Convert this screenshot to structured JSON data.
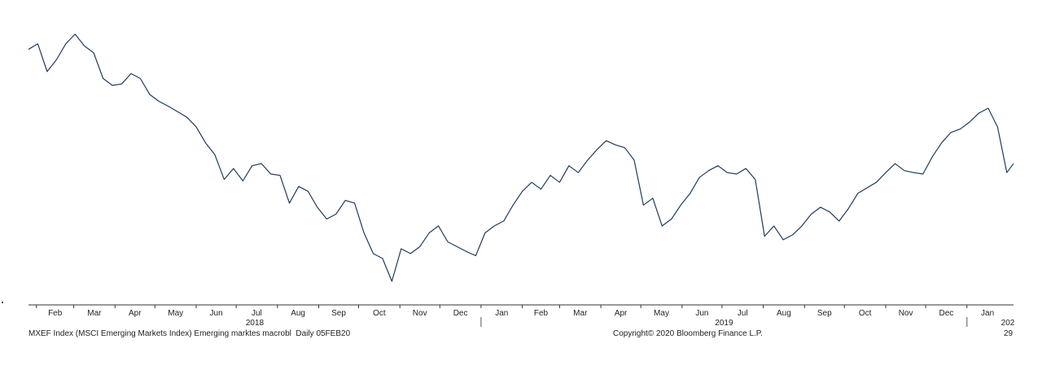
{
  "chart_data": {
    "type": "line",
    "title": "",
    "xlabel": "",
    "ylabel": "",
    "series": [
      {
        "x": [
          "2018-01-26",
          "2018-02-02",
          "2018-02-09",
          "2018-02-16",
          "2018-02-23",
          "2018-03-02",
          "2018-03-09",
          "2018-03-16",
          "2018-03-23",
          "2018-03-30",
          "2018-04-06",
          "2018-04-13",
          "2018-04-20",
          "2018-04-27",
          "2018-05-04",
          "2018-05-11",
          "2018-05-18",
          "2018-05-25",
          "2018-06-01",
          "2018-06-08",
          "2018-06-15",
          "2018-06-22",
          "2018-06-29",
          "2018-07-06",
          "2018-07-13",
          "2018-07-20",
          "2018-07-27",
          "2018-08-03",
          "2018-08-10",
          "2018-08-17",
          "2018-08-24",
          "2018-08-31",
          "2018-09-07",
          "2018-09-14",
          "2018-09-21",
          "2018-09-28",
          "2018-10-05",
          "2018-10-12",
          "2018-10-19",
          "2018-10-26",
          "2018-11-02",
          "2018-11-09",
          "2018-11-16",
          "2018-11-23",
          "2018-11-30",
          "2018-12-07",
          "2018-12-14",
          "2018-12-21",
          "2018-12-28",
          "2019-01-04",
          "2019-01-11",
          "2019-01-18",
          "2019-01-25",
          "2019-02-01",
          "2019-02-08",
          "2019-02-15",
          "2019-02-22",
          "2019-03-01",
          "2019-03-08",
          "2019-03-15",
          "2019-03-22",
          "2019-03-29",
          "2019-04-05",
          "2019-04-12",
          "2019-04-19",
          "2019-04-26",
          "2019-05-03",
          "2019-05-10",
          "2019-05-17",
          "2019-05-24",
          "2019-05-31",
          "2019-06-07",
          "2019-06-14",
          "2019-06-21",
          "2019-06-28",
          "2019-07-05",
          "2019-07-12",
          "2019-07-19",
          "2019-07-26",
          "2019-08-02",
          "2019-08-09",
          "2019-08-16",
          "2019-08-23",
          "2019-08-30",
          "2019-09-06",
          "2019-09-13",
          "2019-09-20",
          "2019-09-27",
          "2019-10-04",
          "2019-10-11",
          "2019-10-18",
          "2019-10-25",
          "2019-11-01",
          "2019-11-08",
          "2019-11-15",
          "2019-11-22",
          "2019-11-29",
          "2019-12-06",
          "2019-12-13",
          "2019-12-20",
          "2019-12-27",
          "2020-01-03",
          "2020-01-10",
          "2020-01-17",
          "2020-01-24",
          "2020-01-31",
          "2020-02-05"
        ],
        "values": [
          1240,
          1248,
          1208,
          1225,
          1248,
          1262,
          1245,
          1235,
          1198,
          1188,
          1190,
          1205,
          1198,
          1175,
          1165,
          1158,
          1150,
          1142,
          1128,
          1105,
          1088,
          1052,
          1068,
          1050,
          1072,
          1075,
          1060,
          1058,
          1018,
          1042,
          1035,
          1012,
          995,
          1002,
          1022,
          1018,
          975,
          945,
          938,
          905,
          952,
          945,
          955,
          975,
          985,
          962,
          955,
          948,
          942,
          975,
          985,
          992,
          1015,
          1035,
          1048,
          1038,
          1058,
          1048,
          1072,
          1062,
          1080,
          1095,
          1108,
          1102,
          1098,
          1080,
          1015,
          1025,
          985,
          995,
          1015,
          1032,
          1055,
          1065,
          1072,
          1062,
          1060,
          1068,
          1052,
          970,
          985,
          965,
          972,
          985,
          1002,
          1012,
          1005,
          992,
          1010,
          1032,
          1040,
          1048,
          1062,
          1075,
          1065,
          1062,
          1060,
          1085,
          1105,
          1120,
          1125,
          1135,
          1148,
          1155,
          1128,
          1062,
          1075
        ]
      }
    ],
    "x_ticks": [
      "Feb",
      "Mar",
      "Apr",
      "May",
      "Jun",
      "Jul",
      "Aug",
      "Sep",
      "Oct",
      "Nov",
      "Dec",
      "Jan",
      "Feb",
      "Mar",
      "Apr",
      "May",
      "Jun",
      "Jul",
      "Aug",
      "Sep",
      "Oct",
      "Nov",
      "Dec",
      "Jan"
    ],
    "years": [
      "2018",
      "2019",
      "202"
    ],
    "grid": false,
    "line_color": "#1f3b5c"
  },
  "footer": {
    "left": "MXEF Index (MSCI Emerging Markets Index) Emerging marktes macrobl  Daily 05FEB20",
    "right": "Copyright© 2020 Bloomberg Finance L.P.",
    "page": "29"
  }
}
